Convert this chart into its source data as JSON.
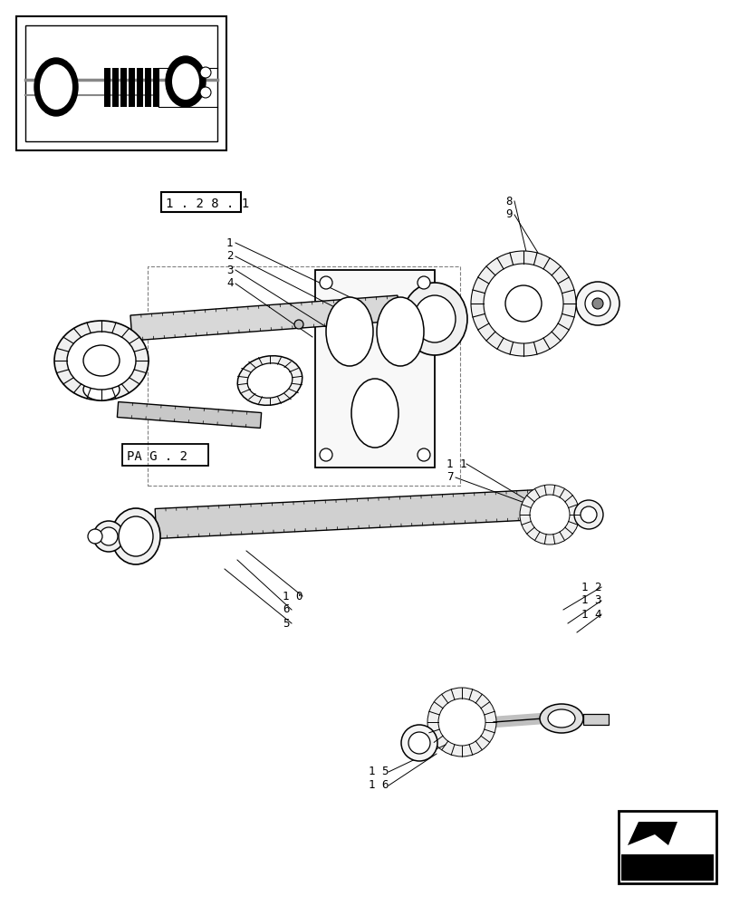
{
  "bg_color": "#ffffff",
  "lc": "#000000",
  "fig_w": 8.28,
  "fig_h": 10.0,
  "ref_label": "1 . 2 8 . 1",
  "pag_label": "PA G . 2",
  "part_labels": [
    [
      "1",
      250,
      268,
      395,
      332
    ],
    [
      "2",
      250,
      283,
      385,
      347
    ],
    [
      "3",
      250,
      298,
      362,
      362
    ],
    [
      "4",
      250,
      313,
      345,
      372
    ],
    [
      "8",
      558,
      222,
      582,
      282
    ],
    [
      "9",
      558,
      237,
      602,
      292
    ],
    [
      "1 1",
      493,
      512,
      582,
      552
    ],
    [
      "7",
      493,
      527,
      612,
      567
    ],
    [
      "1 0",
      312,
      658,
      272,
      608
    ],
    [
      "6",
      312,
      673,
      262,
      618
    ],
    [
      "5",
      312,
      688,
      248,
      628
    ],
    [
      "1 2",
      642,
      648,
      622,
      673
    ],
    [
      "1 3",
      642,
      663,
      627,
      688
    ],
    [
      "1 4",
      642,
      678,
      637,
      698
    ],
    [
      "1 5",
      407,
      852,
      492,
      822
    ],
    [
      "1 6",
      407,
      867,
      482,
      832
    ]
  ]
}
